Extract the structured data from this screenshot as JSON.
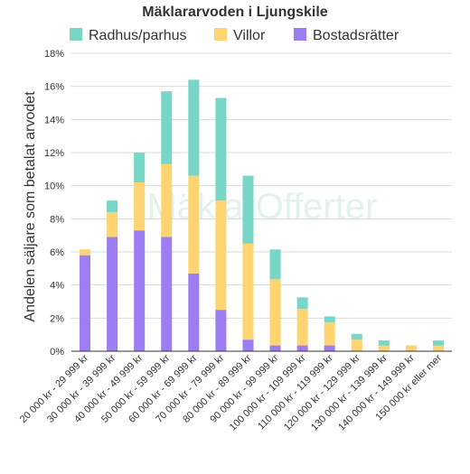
{
  "chart_data": {
    "type": "bar",
    "stacked": true,
    "title": "Mäklararvoden i Ljungskile",
    "ylabel": "Andelen säljare som betalat arvodet",
    "xlabel": "",
    "ylim": [
      0,
      18
    ],
    "yticks": [
      0,
      2,
      4,
      6,
      8,
      10,
      12,
      14,
      16,
      18
    ],
    "ytick_suffix": "%",
    "grid": true,
    "legend_position": "top",
    "watermark": "MäklarOfferter",
    "categories": [
      "20 000 kr - 29 999 kr",
      "30 000 kr - 39 999 kr",
      "40 000 kr - 49 999 kr",
      "50 000 kr - 59 999 kr",
      "60 000 kr - 69 999 kr",
      "70 000 kr - 79 999 kr",
      "80 000 kr - 89 999 kr",
      "90 000 kr - 99 999 kr",
      "100 000 kr - 109 999 kr",
      "110 000 kr - 119 999 kr",
      "120 000 kr - 129 999 kr",
      "130 000 kr - 139 999 kr",
      "140 000 kr - 149 999 kr",
      "150 000 kr eller mer"
    ],
    "series": [
      {
        "name": "Bostadsrätter",
        "color": "#9d7df2",
        "values": [
          5.8,
          6.9,
          7.3,
          6.9,
          4.7,
          2.5,
          0.7,
          0.35,
          0.35,
          0.35,
          0.0,
          0.0,
          0.0,
          0.0
        ]
      },
      {
        "name": "Villor",
        "color": "#fdd46f",
        "values": [
          0.35,
          1.5,
          2.9,
          4.4,
          5.9,
          6.6,
          5.8,
          4.0,
          2.2,
          1.4,
          0.7,
          0.35,
          0.35,
          0.35
        ]
      },
      {
        "name": "Radhus/parhus",
        "color": "#78d6c6",
        "values": [
          0.0,
          0.7,
          1.8,
          4.4,
          5.8,
          6.2,
          4.1,
          1.8,
          0.7,
          0.35,
          0.35,
          0.3,
          0.0,
          0.3
        ]
      }
    ],
    "legend_order": [
      "Radhus/parhus",
      "Villor",
      "Bostadsrätter"
    ]
  }
}
